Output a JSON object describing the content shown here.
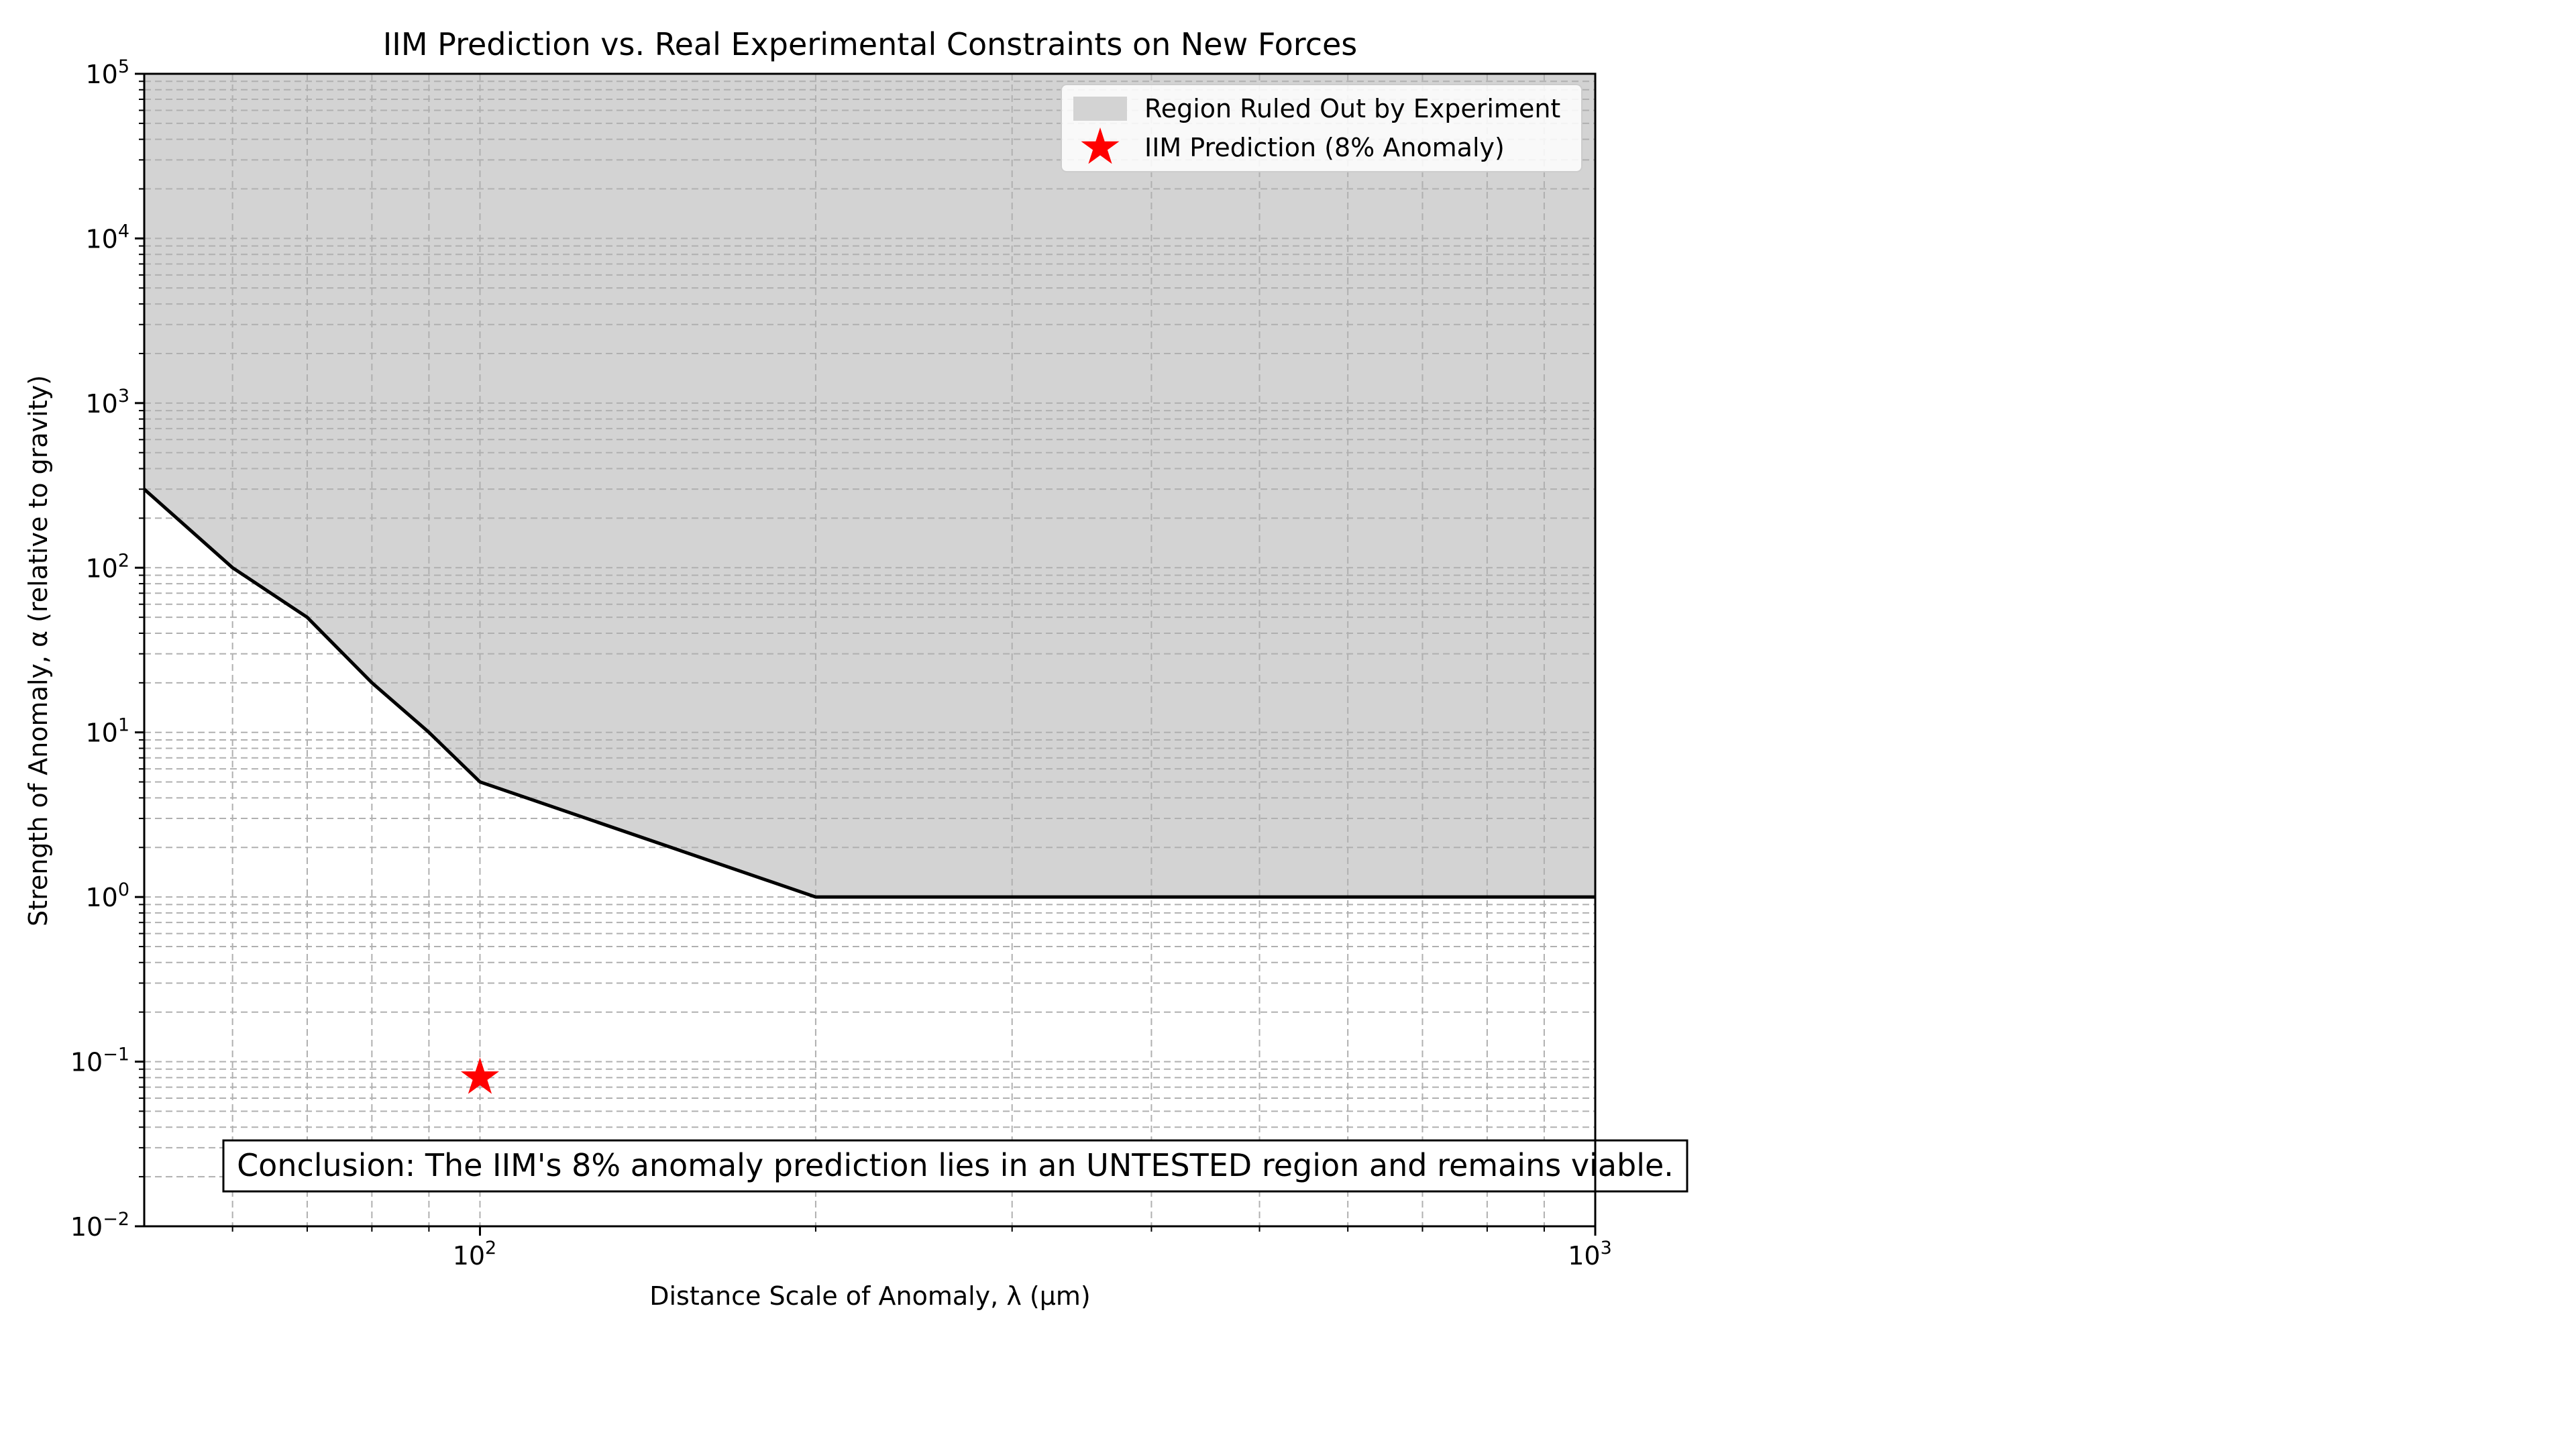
{
  "chart_data": {
    "type": "line",
    "title": "IIM Prediction vs. Real Experimental Constraints on New Forces",
    "xlabel": "Distance Scale of Anomaly, λ (μm)",
    "ylabel": "Strength of Anomaly, α (relative to gravity)",
    "x_scale": "log",
    "y_scale": "log",
    "xlim": [
      50,
      1000
    ],
    "ylim": [
      0.01,
      100000
    ],
    "grid": true,
    "grid_style": "dashed, major and minor",
    "legend_position": "upper right",
    "x_ticks": [
      {
        "value": 100,
        "base": "10",
        "exp": "2"
      },
      {
        "value": 1000,
        "base": "10",
        "exp": "3"
      }
    ],
    "y_ticks": [
      {
        "value": 0.01,
        "base": "10",
        "exp": "−2"
      },
      {
        "value": 0.1,
        "base": "10",
        "exp": "−1"
      },
      {
        "value": 1,
        "base": "10",
        "exp": "0"
      },
      {
        "value": 10,
        "base": "10",
        "exp": "1"
      },
      {
        "value": 100,
        "base": "10",
        "exp": "2"
      },
      {
        "value": 1000,
        "base": "10",
        "exp": "3"
      },
      {
        "value": 10000,
        "base": "10",
        "exp": "4"
      },
      {
        "value": 100000,
        "base": "10",
        "exp": "5"
      }
    ],
    "series": [
      {
        "name": "Region Ruled Out by Experiment",
        "kind": "filled area above boundary line",
        "fill_color": "#d3d3d3",
        "line_color": "#000000",
        "points": [
          {
            "x": 50,
            "y": 300
          },
          {
            "x": 60,
            "y": 100
          },
          {
            "x": 70,
            "y": 50
          },
          {
            "x": 80,
            "y": 20
          },
          {
            "x": 90,
            "y": 10
          },
          {
            "x": 100,
            "y": 5
          },
          {
            "x": 200,
            "y": 1
          },
          {
            "x": 1000,
            "y": 1
          }
        ]
      },
      {
        "name": "IIM Prediction (8% Anomaly)",
        "kind": "scatter star marker",
        "color": "#ff0000",
        "points": [
          {
            "x": 100,
            "y": 0.08
          }
        ]
      }
    ],
    "annotation": "Conclusion: The IIM's 8% anomaly prediction lies in an UNTESTED region and remains viable."
  }
}
